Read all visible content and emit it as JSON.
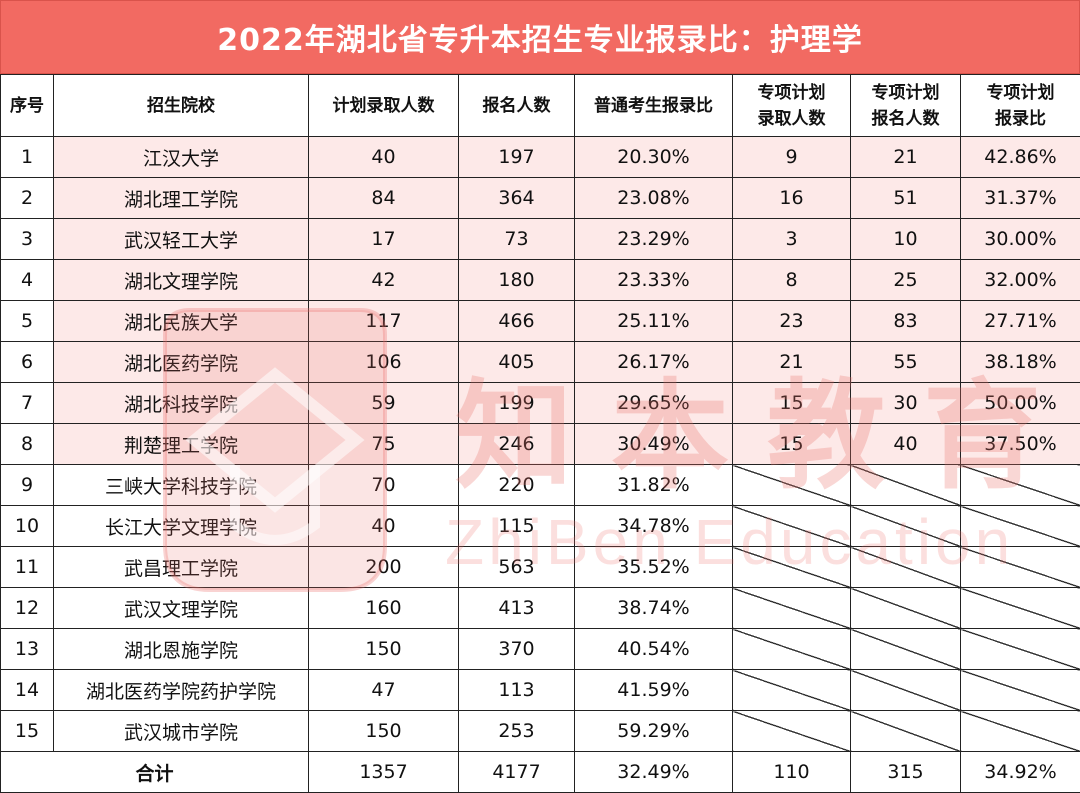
{
  "title": "2022年湖北省专升本招生专业报录比：护理学",
  "columns": [
    "序号",
    "招生院校",
    "计划录取人数",
    "报名人数",
    "普通考生报录比",
    "专项计划录取人数",
    "专项计划报名人数",
    "专项计划报录比"
  ],
  "columns_split": {
    "special_admit": [
      "专项计划",
      "录取人数"
    ],
    "special_apply": [
      "专项计划",
      "报名人数"
    ],
    "special_ratio": [
      "专项计划",
      "报录比"
    ]
  },
  "rows": [
    {
      "no": "1",
      "school": "江汉大学",
      "plan": "40",
      "applicants": "197",
      "ratio": "20.30%",
      "sp_admit": "9",
      "sp_apply": "21",
      "sp_ratio": "42.86%"
    },
    {
      "no": "2",
      "school": "湖北理工学院",
      "plan": "84",
      "applicants": "364",
      "ratio": "23.08%",
      "sp_admit": "16",
      "sp_apply": "51",
      "sp_ratio": "31.37%"
    },
    {
      "no": "3",
      "school": "武汉轻工大学",
      "plan": "17",
      "applicants": "73",
      "ratio": "23.29%",
      "sp_admit": "3",
      "sp_apply": "10",
      "sp_ratio": "30.00%"
    },
    {
      "no": "4",
      "school": "湖北文理学院",
      "plan": "42",
      "applicants": "180",
      "ratio": "23.33%",
      "sp_admit": "8",
      "sp_apply": "25",
      "sp_ratio": "32.00%"
    },
    {
      "no": "5",
      "school": "湖北民族大学",
      "plan": "117",
      "applicants": "466",
      "ratio": "25.11%",
      "sp_admit": "23",
      "sp_apply": "83",
      "sp_ratio": "27.71%"
    },
    {
      "no": "6",
      "school": "湖北医药学院",
      "plan": "106",
      "applicants": "405",
      "ratio": "26.17%",
      "sp_admit": "21",
      "sp_apply": "55",
      "sp_ratio": "38.18%"
    },
    {
      "no": "7",
      "school": "湖北科技学院",
      "plan": "59",
      "applicants": "199",
      "ratio": "29.65%",
      "sp_admit": "15",
      "sp_apply": "30",
      "sp_ratio": "50.00%"
    },
    {
      "no": "8",
      "school": "荆楚理工学院",
      "plan": "75",
      "applicants": "246",
      "ratio": "30.49%",
      "sp_admit": "15",
      "sp_apply": "40",
      "sp_ratio": "37.50%"
    },
    {
      "no": "9",
      "school": "三峡大学科技学院",
      "plan": "70",
      "applicants": "220",
      "ratio": "31.82%"
    },
    {
      "no": "10",
      "school": "长江大学文理学院",
      "plan": "40",
      "applicants": "115",
      "ratio": "34.78%"
    },
    {
      "no": "11",
      "school": "武昌理工学院",
      "plan": "200",
      "applicants": "563",
      "ratio": "35.52%"
    },
    {
      "no": "12",
      "school": "武汉文理学院",
      "plan": "160",
      "applicants": "413",
      "ratio": "38.74%"
    },
    {
      "no": "13",
      "school": "湖北恩施学院",
      "plan": "150",
      "applicants": "370",
      "ratio": "40.54%"
    },
    {
      "no": "14",
      "school": "湖北医药学院药护学院",
      "plan": "47",
      "applicants": "113",
      "ratio": "41.59%"
    },
    {
      "no": "15",
      "school": "武汉城市学院",
      "plan": "150",
      "applicants": "253",
      "ratio": "59.29%"
    }
  ],
  "total": {
    "label": "合计",
    "plan": "1357",
    "applicants": "4177",
    "ratio": "32.49%",
    "sp_admit": "110",
    "sp_apply": "315",
    "sp_ratio": "34.92%"
  },
  "watermark": {
    "cn": "知本教育",
    "en": "ZhiBen Education",
    "logo_icon": "graduation-cap-logo-icon",
    "color": "#eb6e69"
  },
  "colors": {
    "title_bg": "#f26a62",
    "special_row_bg": "#fde9e8"
  }
}
